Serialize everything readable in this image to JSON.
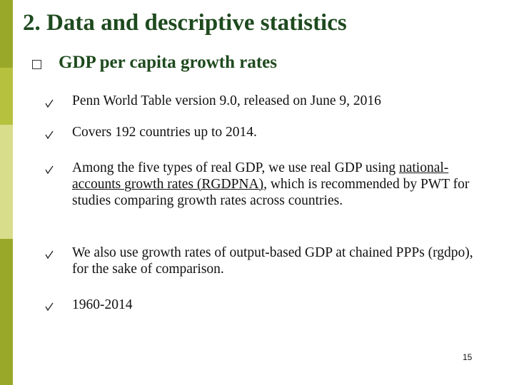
{
  "header": {
    "title": "2. Data and descriptive statistics",
    "subtitle": "GDP per capita growth rates"
  },
  "bullets": [
    {
      "text": "Penn World Table version 9.0, released on June 9, 2016"
    },
    {
      "text": "Covers 192 countries up to 2014."
    },
    {
      "text": "Among the five types of real GDP, we use real GDP using ",
      "underlined": "national-accounts growth rates (RGDPNA)",
      "text_after": ", which is recommended by PWT for studies comparing growth rates across countries."
    },
    {
      "text": "We also use growth rates of output-based GDP at chained PPPs (rgdpo), for the sake of comparison."
    },
    {
      "text": "1960-2014"
    }
  ],
  "page_number": "15"
}
